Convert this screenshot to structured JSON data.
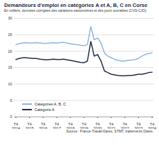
{
  "chart_data": {
    "type": "line",
    "title": "Demandeurs d'emploi en catégories A et A, B, C en Corse",
    "subtitle": "En milliers, données corrigées des variations saisonnières et des jours ouvrables (CVS-CJO)",
    "source": "Source : France Travail-Dares, STMT, traitements Dares.",
    "categories": [
      "T4 2014",
      null,
      null,
      null,
      "T4 2015",
      null,
      null,
      null,
      "T4 2016",
      null,
      null,
      null,
      "T4 2017",
      null,
      null,
      null,
      "T4 2018",
      null,
      null,
      null,
      "T4 2019",
      null,
      null,
      null,
      "T4 2020",
      null,
      null,
      null,
      "T4 2021",
      null,
      null,
      null,
      "T4 2022",
      null,
      null,
      null,
      "T4 2023",
      null,
      null,
      null,
      "T4 2024"
    ],
    "series": [
      {
        "name": "Catégories A, B, C",
        "color": "#8fb4dc",
        "values": [
          22.0,
          22.3,
          22.5,
          22.6,
          22.5,
          22.5,
          22.6,
          22.5,
          22.4,
          22.4,
          22.5,
          22.6,
          22.5,
          22.6,
          22.7,
          22.5,
          22.3,
          22.1,
          22.0,
          21.8,
          21.7,
          22.0,
          27.5,
          23.5,
          24.0,
          22.5,
          19.5,
          18.5,
          18.0,
          17.5,
          17.2,
          17.0,
          17.0,
          17.2,
          17.3,
          17.5,
          17.8,
          18.5,
          19.0,
          19.3,
          19.5
        ]
      },
      {
        "name": "Catégorie A",
        "color": "#1f2a44",
        "values": [
          17.5,
          17.8,
          18.0,
          18.0,
          17.9,
          17.8,
          17.8,
          17.6,
          17.5,
          17.4,
          17.5,
          17.6,
          17.5,
          17.5,
          17.6,
          17.4,
          17.2,
          17.0,
          16.8,
          16.6,
          16.5,
          17.0,
          23.0,
          18.5,
          19.0,
          17.0,
          14.0,
          13.5,
          13.0,
          12.8,
          12.6,
          12.5,
          12.5,
          12.6,
          12.6,
          12.8,
          13.0,
          13.0,
          13.2,
          13.5,
          13.6
        ]
      }
    ],
    "ylim": [
      0,
      30
    ],
    "yticks": [
      0,
      5,
      10,
      15,
      20,
      25,
      30
    ],
    "grid": true,
    "legend": "lower left"
  }
}
